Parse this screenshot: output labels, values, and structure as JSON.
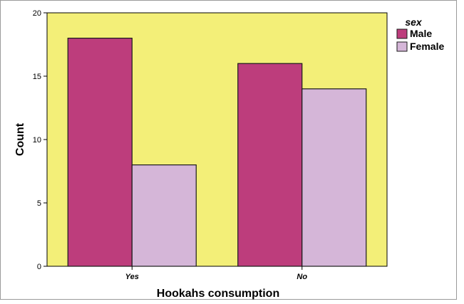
{
  "chart_data": {
    "type": "bar",
    "categories": [
      "Yes",
      "No"
    ],
    "series": [
      {
        "name": "Male",
        "values": [
          18,
          16
        ],
        "color": "#bd3d7c"
      },
      {
        "name": "Female",
        "values": [
          8,
          14
        ],
        "color": "#d5b6d8"
      }
    ],
    "xlabel": "Hookahs consumption",
    "ylabel": "Count",
    "ylim": [
      0,
      20
    ],
    "yticks": [
      "0",
      "5",
      "10",
      "15",
      "20"
    ],
    "legend_title": "sex",
    "legend_position": "top-right",
    "grid": false,
    "plot_background": "#f3ef78"
  }
}
